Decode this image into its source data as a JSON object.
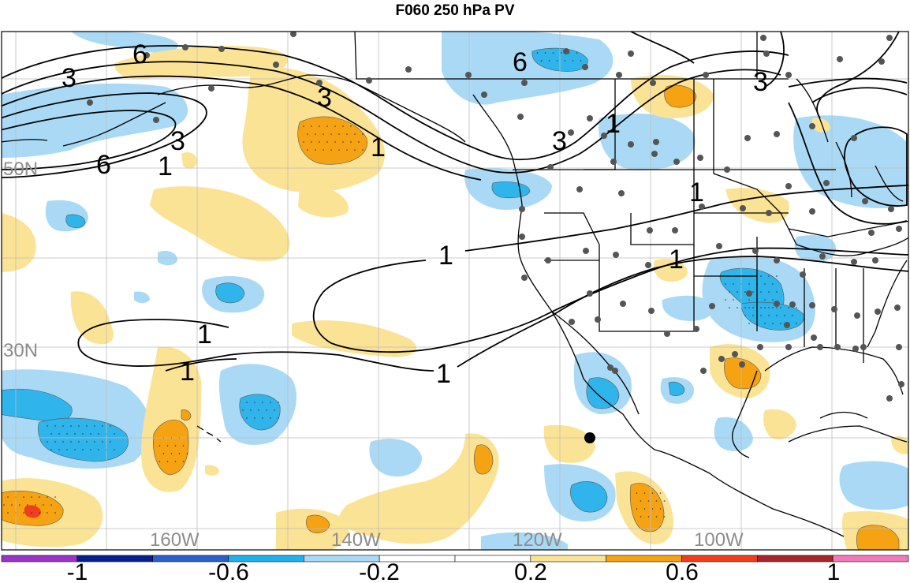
{
  "title": "F060 250 hPa PV",
  "map": {
    "lat_labels": [
      "50N",
      "30N"
    ],
    "lon_labels": [
      "160W",
      "140W",
      "120W",
      "100W"
    ],
    "contour_labels": [
      "6",
      "3",
      "6",
      "3",
      "1",
      "6",
      "3",
      "3",
      "1",
      "3",
      "1",
      "1",
      "1",
      "1",
      "1",
      "1",
      "1"
    ],
    "colors": {
      "neg_light": "#a9d9f5",
      "neg_mid": "#2fb5ec",
      "pos_light": "#fbe395",
      "pos_mid": "#f6a313",
      "pos_strong": "#ee3e1e",
      "stations": "#555555",
      "contour": "#000000"
    }
  },
  "colorbar": {
    "colors": [
      "#9a33c8",
      "#0a1d8c",
      "#2a5fcb",
      "#1fb2ea",
      "#a9d9f5",
      "#ffffff",
      "#ffffff",
      "#fbe395",
      "#f6a313",
      "#ee3e1e",
      "#a7252b",
      "#f37ab8"
    ],
    "labels": [
      "-1",
      "-0.6",
      "-0.2",
      "0.2",
      "0.6",
      "1"
    ]
  }
}
